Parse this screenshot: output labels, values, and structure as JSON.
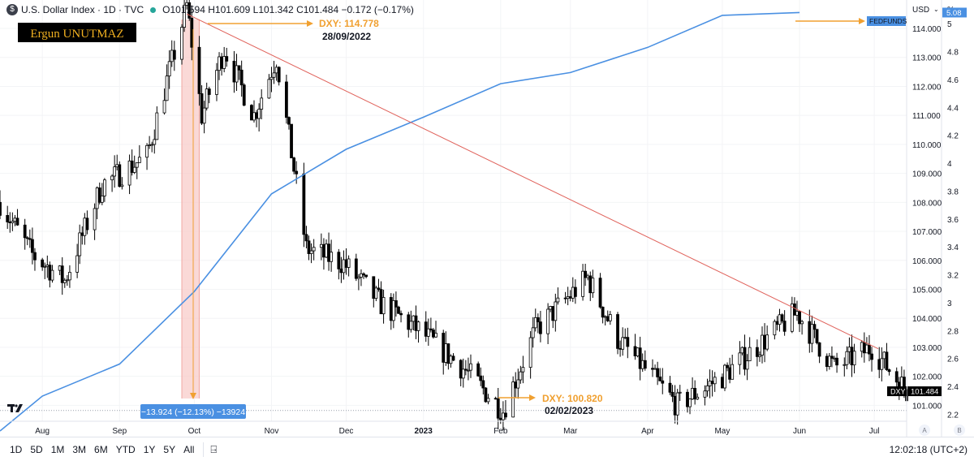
{
  "header": {
    "symbol_icon": "dollar-icon",
    "title": "U.S. Dollar Index · 1D · TVC",
    "ohlc": {
      "open_label": "O",
      "open": "101.594",
      "high_label": "H",
      "high": "101.609",
      "low_label": "L",
      "low": "101.342",
      "close_label": "C",
      "close": "101.484",
      "change": "−0.172 (−0.17%)"
    }
  },
  "author_tag": "Ergun UNUTMAZ",
  "left_axis_header": {
    "currency": "USD",
    "unit": "%"
  },
  "annotations": {
    "peak_value": "DXY: 114.778",
    "peak_date": "28/09/2022",
    "low_value": "DXY: 100.820",
    "low_date": "02/02/2023",
    "measure": "−13.924 (−12.13%) −13924",
    "fed_label": "FEDFUNDS",
    "fed_value": "5.08",
    "dxy_label": "DXY",
    "dxy_value": "101.484"
  },
  "bottom_bar": {
    "ranges": [
      "1D",
      "5D",
      "1M",
      "3M",
      "6M",
      "YTD",
      "1Y",
      "5Y",
      "All"
    ],
    "compare_icon": "calendar-range-icon",
    "clock": "12:02:18 (UTC+2)"
  },
  "colors": {
    "up": "#ffffff",
    "down": "#000000",
    "wick": "#000000",
    "fed_line": "#4a90e2",
    "trend_line": "#e0625b",
    "arrow": "#f0a030",
    "highlight": "#f8c9c6",
    "measure_bg": "#4a90e2"
  },
  "chart_data": {
    "type": "candlestick",
    "series": [
      {
        "name": "DXY",
        "axis": "price"
      },
      {
        "name": "FEDFUNDS",
        "axis": "rate",
        "points": [
          [
            "2022-07-15",
            2.08
          ],
          [
            "2022-08-01",
            2.33
          ],
          [
            "2022-09-01",
            2.56
          ],
          [
            "2022-10-01",
            3.08
          ],
          [
            "2022-11-01",
            3.78
          ],
          [
            "2022-12-01",
            4.1
          ],
          [
            "2023-01-01",
            4.33
          ],
          [
            "2023-02-01",
            4.57
          ],
          [
            "2023-03-01",
            4.65
          ],
          [
            "2023-04-01",
            4.83
          ],
          [
            "2023-05-01",
            5.06
          ],
          [
            "2023-06-01",
            5.08
          ]
        ]
      }
    ],
    "price_axis": {
      "ticks": [
        "101.000",
        "102.000",
        "103.000",
        "104.000",
        "105.000",
        "106.000",
        "107.000",
        "108.000",
        "109.000",
        "110.000",
        "111.000",
        "112.000",
        "113.000",
        "114.000"
      ]
    },
    "rate_axis": {
      "ticks": [
        "2.2",
        "2.4",
        "2.6",
        "2.8",
        "3",
        "3.2",
        "3.4",
        "3.6",
        "3.8",
        "4",
        "4.2",
        "4.4",
        "4.6",
        "4.8",
        "5"
      ]
    },
    "time_axis": {
      "ticks": [
        "Aug",
        "Sep",
        "Oct",
        "Nov",
        "Dec",
        "2023",
        "Feb",
        "Mar",
        "Apr",
        "May",
        "Jun",
        "Jul"
      ]
    },
    "x_range": [
      "2022-07-15",
      "2023-07-14"
    ],
    "price_range": [
      100.45,
      114.98
    ],
    "rate_range": [
      2.15,
      5.17
    ],
    "trend_line": [
      [
        "2022-09-28",
        114.5
      ],
      [
        "2023-07-14",
        102.95
      ]
    ],
    "peak": [
      "2022-09-28",
      114.778
    ],
    "low": [
      "2023-02-02",
      100.82
    ],
    "highlight_range": [
      "2022-09-26",
      "2022-10-03"
    ],
    "last_close": 101.484
  }
}
